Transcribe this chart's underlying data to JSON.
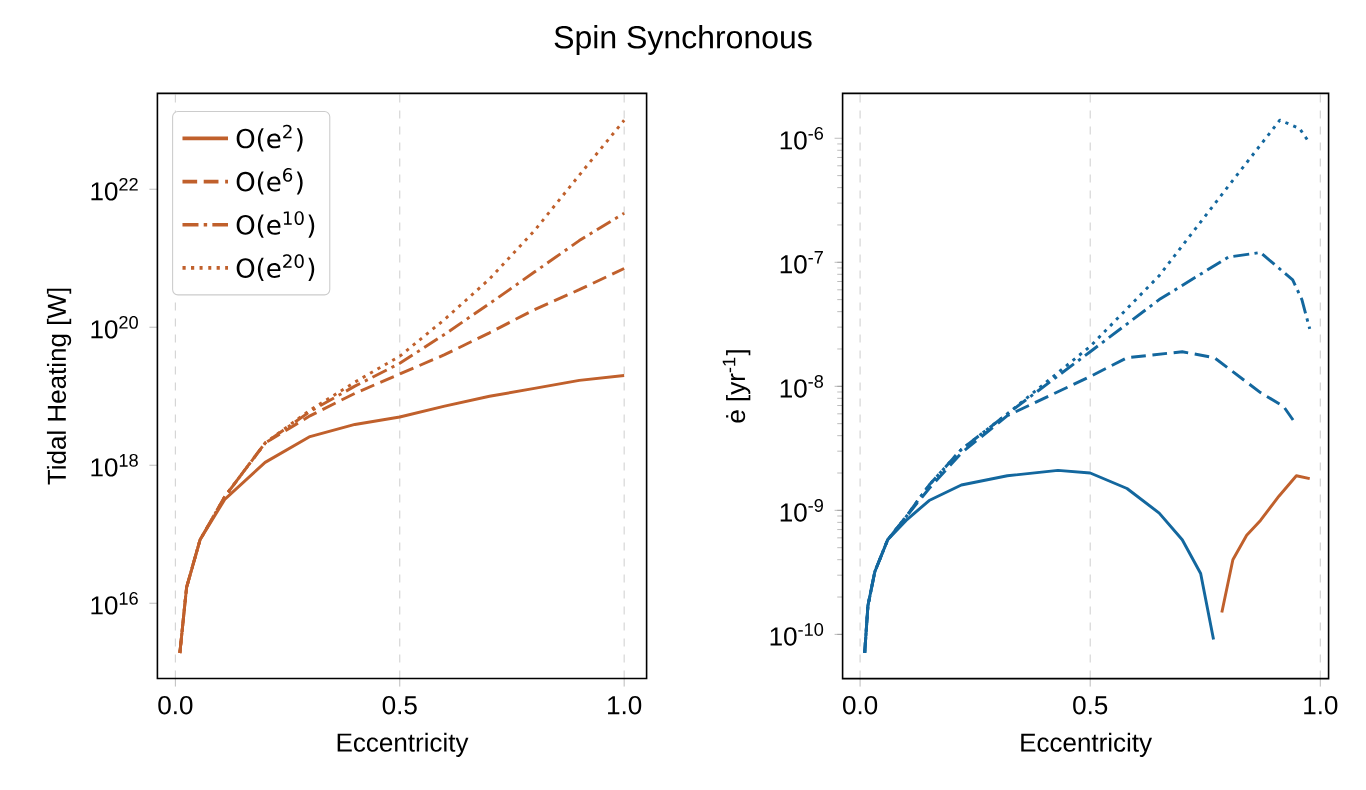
{
  "chart_data": [
    {
      "type": "line",
      "title": "Spin Synchronous",
      "xlabel": "Eccentricity",
      "ylabel": "Tidal Heating [W]",
      "log": "y",
      "grid": "x",
      "legend": "top left",
      "marker": "none",
      "xlim": [
        -0.04,
        1.05
      ],
      "xticks": [
        {
          "value": 0,
          "label": "0.0"
        },
        {
          "value": 0.5,
          "label": "0.5"
        },
        {
          "value": 1,
          "label": "1.0"
        }
      ],
      "ylim": [
        810000000000000.0,
        2.45e+23
      ],
      "yticks": [
        {
          "value": 1e+16,
          "label": "10$^{16}$"
        },
        {
          "value": 1e+18,
          "label": "10$^{18}$"
        },
        {
          "value": 1e+20,
          "label": "10$^{20}$"
        },
        {
          "value": 1e+22,
          "label": "10$^{22}$"
        }
      ],
      "x": [
        0.01,
        0.025,
        0.055,
        0.11,
        0.2,
        0.3,
        0.4,
        0.5,
        0.6,
        0.7,
        0.8,
        0.9,
        1.0
      ],
      "series": [
        {
          "name": "O(e$^{2}$)",
          "color": "#c0602c",
          "line_style": "solid",
          "values": [
            1900000000000000.0,
            1.7e+16,
            8.3e+16,
            3.2e+17,
            1.1e+18,
            2.6e+18,
            3.9e+18,
            5e+18,
            7.2e+18,
            1e+19,
            1.3e+19,
            1.7e+19,
            2e+19
          ]
        },
        {
          "name": "O(e$^{6}$)",
          "color": "#c0602c",
          "line_style": "dashed",
          "values": [
            1900000000000000.0,
            1.7e+16,
            8.3e+16,
            3.5e+17,
            2.1e+18,
            5.2e+18,
            1.1e+19,
            2.1e+19,
            4e+19,
            8.3e+19,
            1.8e+20,
            3.5e+20,
            7.1e+20
          ]
        },
        {
          "name": "O(e$^{10}$)",
          "color": "#c0602c",
          "line_style": "dashdot",
          "values": [
            1900000000000000.0,
            1.7e+16,
            8.3e+16,
            3.5e+17,
            2.1e+18,
            6e+18,
            1.4e+19,
            3e+19,
            7.9e+19,
            2.2e+20,
            6.3e+20,
            1.8e+21,
            4.5e+21
          ]
        },
        {
          "name": "O(e$^{20}$)",
          "color": "#c0602c",
          "line_style": "dotted",
          "values": [
            1900000000000000.0,
            1.7e+16,
            8.3e+16,
            3.5e+17,
            2.1e+18,
            6.3e+18,
            1.6e+19,
            3.8e+19,
            1.3e+20,
            5e+20,
            2.5e+21,
            1.6e+22,
            1e+23
          ]
        }
      ]
    },
    {
      "type": "line",
      "xlabel": "Eccentricity",
      "ylabel": "ė [yr$^{-1}$]",
      "log": "y",
      "grid": "x",
      "marker": "none",
      "xlim": [
        -0.038,
        1.018
      ],
      "xticks": [
        {
          "value": 0,
          "label": "0.0"
        },
        {
          "value": 0.5,
          "label": "0.5"
        },
        {
          "value": 1,
          "label": "1.0"
        }
      ],
      "ylim": [
        4.4e-11,
        2.3e-06
      ],
      "yticks": [
        {
          "value": 1e-10,
          "label": "10$^{-10}$"
        },
        {
          "value": 1e-09,
          "label": "10$^{-9}$"
        },
        {
          "value": 1e-08,
          "label": "10$^{-8}$"
        },
        {
          "value": 1e-07,
          "label": "10$^{-7}$"
        },
        {
          "value": 1e-06,
          "label": "10$^{-6}$"
        }
      ],
      "series": [
        {
          "color": "#13679e",
          "line_style": "solid",
          "x": [
            0.01,
            0.017,
            0.032,
            0.06,
            0.1,
            0.15,
            0.22,
            0.32,
            0.43,
            0.5,
            0.58,
            0.65,
            0.7,
            0.74,
            0.768
          ],
          "values": [
            7.1e-11,
            1.7e-10,
            3.2e-10,
            5.8e-10,
            8.3e-10,
            1.2e-09,
            1.6e-09,
            1.9e-09,
            2.1e-09,
            2e-09,
            1.5e-09,
            9.5e-10,
            5.8e-10,
            3.1e-10,
            9.1e-11
          ]
        },
        {
          "color": "#c0602c",
          "line_style": "solid",
          "x": [
            0.786,
            0.81,
            0.84,
            0.87,
            0.91,
            0.948,
            0.977
          ],
          "values": [
            1.5e-10,
            4e-10,
            6.3e-10,
            8.3e-10,
            1.3e-09,
            1.9e-09,
            1.8e-09
          ]
        },
        {
          "color": "#13679e",
          "line_style": "dashed",
          "x": [
            0.01,
            0.017,
            0.032,
            0.06,
            0.1,
            0.15,
            0.22,
            0.32,
            0.5,
            0.58,
            0.7,
            0.77,
            0.87,
            0.92,
            0.948
          ],
          "values": [
            7.1e-11,
            1.7e-10,
            3.2e-10,
            5.8e-10,
            8.9e-10,
            1.5e-09,
            2.9e-09,
            5.8e-09,
            1.2e-08,
            1.7e-08,
            1.9e-08,
            1.7e-08,
            8.9e-09,
            6.9e-09,
            4.9e-09
          ]
        },
        {
          "color": "#13679e",
          "line_style": "dashdot",
          "x": [
            0.01,
            0.017,
            0.032,
            0.06,
            0.1,
            0.15,
            0.22,
            0.32,
            0.5,
            0.65,
            0.8,
            0.87,
            0.94,
            0.96,
            0.977
          ],
          "values": [
            7.1e-11,
            1.7e-10,
            3.2e-10,
            5.8e-10,
            8.9e-10,
            1.6e-09,
            3.1e-09,
            6e-09,
            1.9e-08,
            5e-08,
            1.1e-07,
            1.2e-07,
            7.2e-08,
            5e-08,
            2.9e-08
          ]
        },
        {
          "color": "#13679e",
          "line_style": "dotted",
          "x": [
            0.01,
            0.017,
            0.032,
            0.06,
            0.1,
            0.15,
            0.22,
            0.32,
            0.5,
            0.65,
            0.8,
            0.912,
            0.955,
            0.977
          ],
          "values": [
            7.1e-11,
            1.7e-10,
            3.2e-10,
            5.8e-10,
            8.9e-10,
            1.6e-09,
            3.1e-09,
            6e-09,
            2.1e-08,
            7.8e-08,
            4.1e-07,
            1.4e-06,
            1.2e-06,
            9.1e-07
          ]
        }
      ]
    }
  ]
}
